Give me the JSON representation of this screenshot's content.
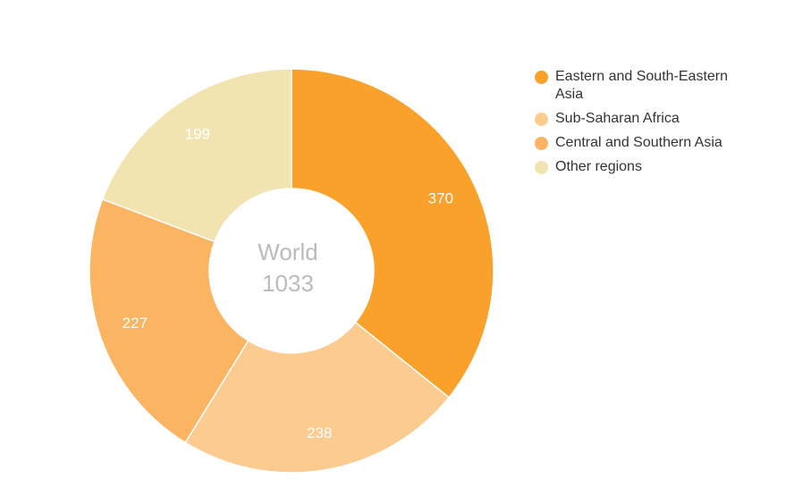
{
  "chart_data": {
    "type": "donut",
    "categories": [
      "Eastern and South-Eastern Asia",
      "Sub-Saharan Africa",
      "Central and Southern Asia",
      "Other regions"
    ],
    "values": [
      370,
      238,
      227,
      199
    ],
    "colors": [
      "#f9a12b",
      "#fccb8f",
      "#fab462",
      "#f2e4b0"
    ],
    "center_title": "World",
    "center_value": 1033,
    "legend": "top-right"
  }
}
